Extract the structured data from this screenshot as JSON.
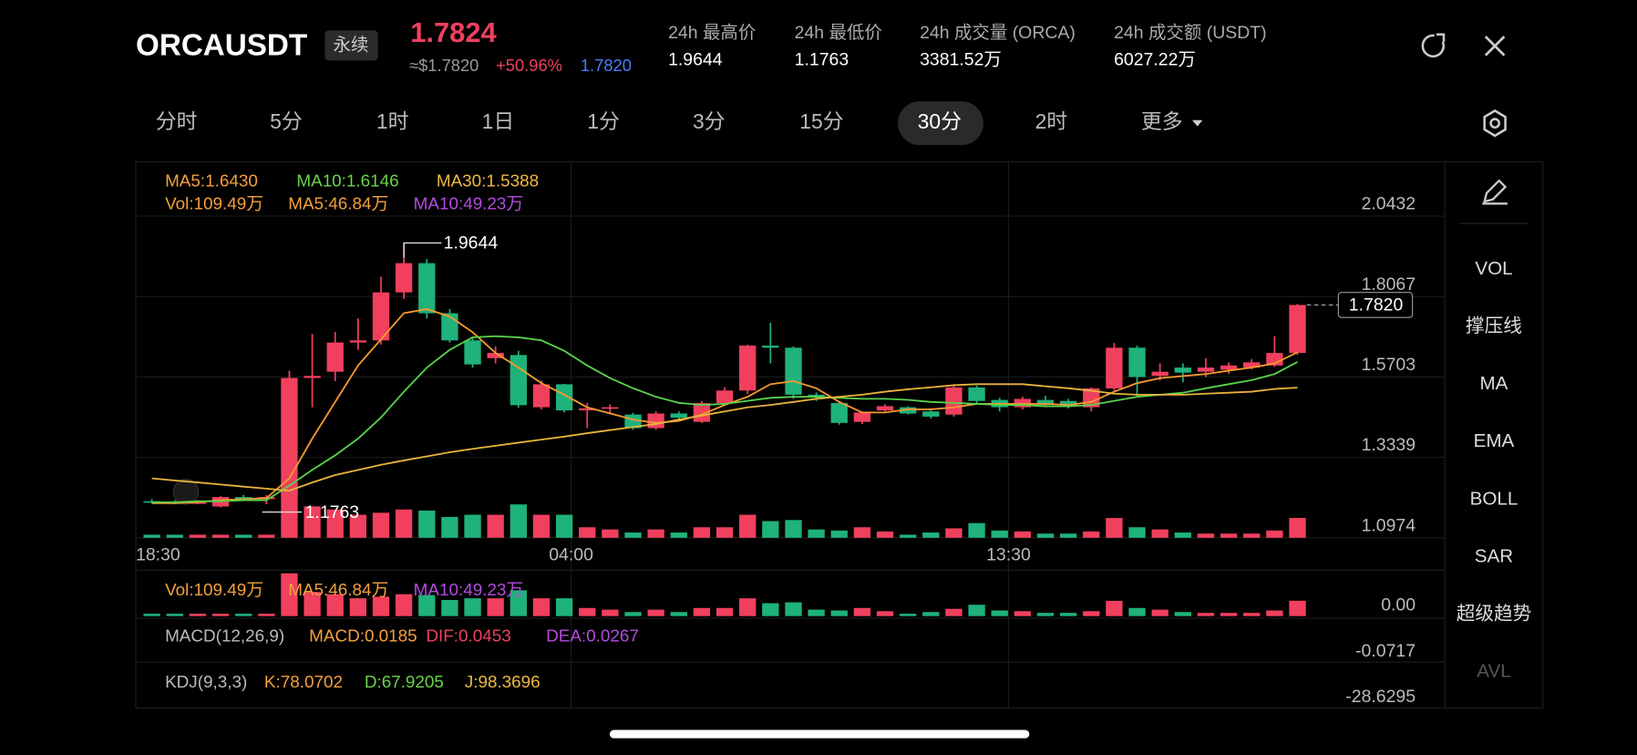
{
  "header": {
    "symbol": "ORCAUSDT",
    "badge": "永续",
    "price": "1.7824",
    "approx_price": "≈$1.7820",
    "change": "+50.96%",
    "mark_price": "1.7820",
    "stats": [
      {
        "label": "24h 最高价",
        "value": "1.9644"
      },
      {
        "label": "24h 最低价",
        "value": "1.1763"
      },
      {
        "label": "24h 成交量 (ORCA)",
        "value": "3381.52万"
      },
      {
        "label": "24h 成交额 (USDT)",
        "value": "6027.22万"
      }
    ]
  },
  "tabs": [
    {
      "label": "分时"
    },
    {
      "label": "5分"
    },
    {
      "label": "1时"
    },
    {
      "label": "1日"
    },
    {
      "label": "1分"
    },
    {
      "label": "3分"
    },
    {
      "label": "15分"
    },
    {
      "label": "30分",
      "active": true
    },
    {
      "label": "2时"
    },
    {
      "label": "更多"
    }
  ],
  "side_menu": [
    {
      "label": "VOL"
    },
    {
      "label": "撑压线"
    },
    {
      "label": "MA"
    },
    {
      "label": "EMA"
    },
    {
      "label": "BOLL"
    },
    {
      "label": "SAR"
    },
    {
      "label": "超级趋势"
    },
    {
      "label": "AVL",
      "dim": true
    }
  ],
  "chart_data": {
    "type": "candlestick",
    "up_color": "#f0405e",
    "down_color": "#1fb27a",
    "ma_legend": [
      {
        "text": "MA5:1.6430",
        "color": "#f5a03d"
      },
      {
        "text": "MA10:1.6146",
        "color": "#6ad44a"
      },
      {
        "text": "MA30:1.5388",
        "color": "#f0b840"
      }
    ],
    "vol_legend": [
      {
        "text": "Vol:109.49万",
        "color": "#f5a03d"
      },
      {
        "text": "MA5:46.84万",
        "color": "#f5a03d"
      },
      {
        "text": "MA10:49.23万",
        "color": "#b44be0"
      }
    ],
    "xlabels": [
      "18:30",
      "04:00",
      "13:30"
    ],
    "ylim": [
      1.0974,
      2.2028
    ],
    "yticks": [
      2.0432,
      1.8067,
      1.5703,
      1.3339,
      1.0974
    ],
    "high_label": "1.9644",
    "low_label": "1.1763",
    "last_label": "1.7820",
    "open": [
      1.2049,
      1.2018,
      1.1988,
      1.1896,
      1.2172,
      1.2111,
      1.2172,
      1.5673,
      1.5857,
      1.6716,
      1.6778,
      1.819,
      1.905,
      1.7576,
      1.6778,
      1.6256,
      1.6348,
      1.4813,
      1.5488,
      1.4721,
      1.4782,
      1.4598,
      1.4199,
      1.4629,
      1.4383,
      1.4936,
      1.5304,
      1.6624,
      1.6563,
      1.5181,
      1.4936,
      1.4383,
      1.4721,
      1.4813,
      1.469,
      1.4598,
      1.5396,
      1.5028,
      1.4813,
      1.5028,
      1.4997,
      1.4813,
      1.5366,
      1.6563,
      1.5734,
      1.5979,
      1.5857,
      1.5918,
      1.5979,
      1.6041,
      1.6409
    ],
    "high": [
      1.2111,
      1.208,
      1.208,
      1.2203,
      1.2234,
      1.2234,
      1.5887,
      1.6962,
      1.7024,
      1.7423,
      1.8651,
      1.9644,
      1.9173,
      1.77,
      1.684,
      1.66,
      1.6471,
      1.56,
      1.55,
      1.4936,
      1.49,
      1.465,
      1.469,
      1.469,
      1.4997,
      1.54,
      1.6655,
      1.73,
      1.66,
      1.525,
      1.4997,
      1.469,
      1.49,
      1.4844,
      1.472,
      1.545,
      1.545,
      1.509,
      1.512,
      1.515,
      1.506,
      1.54,
      1.6701,
      1.6624,
      1.6102,
      1.61,
      1.6255,
      1.6133,
      1.623,
      1.6901,
      1.785
    ],
    "low": [
      1.1988,
      1.1957,
      1.1957,
      1.1866,
      1.208,
      1.1957,
      1.1763,
      1.4813,
      1.558,
      1.6501,
      1.6655,
      1.8,
      1.7423,
      1.6716,
      1.598,
      1.61,
      1.48,
      1.475,
      1.466,
      1.4199,
      1.46,
      1.415,
      1.415,
      1.445,
      1.435,
      1.4874,
      1.52,
      1.6102,
      1.5058,
      1.4997,
      1.43,
      1.432,
      1.469,
      1.46,
      1.448,
      1.4537,
      1.4936,
      1.469,
      1.475,
      1.4813,
      1.478,
      1.469,
      1.5304,
      1.515,
      1.56,
      1.555,
      1.57,
      1.58,
      1.593,
      1.6,
      1.635
    ],
    "close": [
      1.2018,
      1.1988,
      1.2018,
      1.2172,
      1.2111,
      1.2172,
      1.5673,
      1.5734,
      1.6716,
      1.6778,
      1.819,
      1.905,
      1.7576,
      1.6778,
      1.6072,
      1.6409,
      1.4874,
      1.5488,
      1.4721,
      1.4782,
      1.4813,
      1.4199,
      1.4629,
      1.4506,
      1.4936,
      1.5304,
      1.6624,
      1.6563,
      1.5181,
      1.512,
      1.4352,
      1.4659,
      1.4844,
      1.4629,
      1.4537,
      1.5396,
      1.4997,
      1.4813,
      1.5058,
      1.4874,
      1.4844,
      1.5366,
      1.6563,
      1.5703,
      1.5857,
      1.583,
      1.5979,
      1.6041,
      1.6133,
      1.6409,
      1.782
    ],
    "volume": [
      17,
      17,
      17,
      17,
      17,
      17,
      305,
      173,
      156,
      127,
      138,
      156,
      150,
      115,
      127,
      127,
      184,
      127,
      127,
      58,
      46,
      29,
      46,
      29,
      58,
      58,
      127,
      92,
      98,
      46,
      40,
      58,
      35,
      17,
      29,
      52,
      81,
      40,
      35,
      23,
      23,
      35,
      109,
      58,
      46,
      29,
      23,
      23,
      23,
      40,
      109.49
    ],
    "series": [
      {
        "name": "MA5",
        "color": "#f59a2f",
        "values": [
          1.199,
          1.199,
          1.202,
          1.208,
          1.211,
          1.214,
          1.272,
          1.389,
          1.497,
          1.604,
          1.681,
          1.758,
          1.77,
          1.748,
          1.702,
          1.641,
          1.598,
          1.552,
          1.518,
          1.481,
          1.463,
          1.445,
          1.435,
          1.441,
          1.46,
          1.488,
          1.512,
          1.549,
          1.558,
          1.537,
          1.497,
          1.466,
          1.466,
          1.475,
          1.475,
          1.481,
          1.491,
          1.491,
          1.491,
          1.491,
          1.488,
          1.497,
          1.527,
          1.552,
          1.567,
          1.573,
          1.579,
          1.589,
          1.598,
          1.61,
          1.643
        ]
      },
      {
        "name": "MA10",
        "color": "#58d34c",
        "values": [
          1.202,
          1.202,
          1.205,
          1.205,
          1.208,
          1.208,
          1.251,
          1.297,
          1.34,
          1.389,
          1.451,
          1.527,
          1.598,
          1.65,
          1.687,
          1.69,
          1.687,
          1.678,
          1.647,
          1.604,
          1.567,
          1.537,
          1.512,
          1.494,
          1.488,
          1.491,
          1.5,
          1.509,
          1.512,
          1.512,
          1.509,
          1.506,
          1.506,
          1.503,
          1.497,
          1.494,
          1.491,
          1.488,
          1.488,
          1.484,
          1.484,
          1.488,
          1.5,
          1.512,
          1.518,
          1.524,
          1.537,
          1.549,
          1.561,
          1.579,
          1.6146
        ]
      },
      {
        "name": "MA30",
        "color": "#e8b33c",
        "values": [
          1.272,
          1.266,
          1.26,
          1.254,
          1.248,
          1.242,
          1.236,
          1.26,
          1.282,
          1.297,
          1.312,
          1.325,
          1.337,
          1.349,
          1.359,
          1.368,
          1.377,
          1.386,
          1.395,
          1.405,
          1.414,
          1.423,
          1.432,
          1.445,
          1.457,
          1.469,
          1.481,
          1.488,
          1.497,
          1.506,
          1.512,
          1.518,
          1.527,
          1.534,
          1.54,
          1.546,
          1.549,
          1.549,
          1.549,
          1.543,
          1.537,
          1.53,
          1.521,
          1.518,
          1.518,
          1.518,
          1.521,
          1.524,
          1.527,
          1.535,
          1.5388
        ]
      }
    ],
    "panels": [
      {
        "labels": [
          {
            "text": "Vol:109.49万",
            "color": "#f5a03d"
          },
          {
            "text": "MA5:46.84万",
            "color": "#f5a03d"
          },
          {
            "text": "MA10:49.23万",
            "color": "#b44be0"
          }
        ],
        "axis_label": "0.00"
      },
      {
        "labels": [
          {
            "text": "MACD(12,26,9)",
            "color": "#bbbbbb"
          },
          {
            "text": "MACD:0.0185",
            "color": "#f5a03d"
          },
          {
            "text": "DIF:0.0453",
            "color": "#f0405e"
          },
          {
            "text": "DEA:0.0267",
            "color": "#b44be0"
          }
        ],
        "axis_label": "-0.0717"
      },
      {
        "labels": [
          {
            "text": "KDJ(9,3,3)",
            "color": "#bbbbbb"
          },
          {
            "text": "K:78.0702",
            "color": "#f5a03d"
          },
          {
            "text": "D:67.9205",
            "color": "#6ad44a"
          },
          {
            "text": "J:98.3696",
            "color": "#f0b840"
          }
        ],
        "axis_label": "-28.6295"
      }
    ]
  }
}
